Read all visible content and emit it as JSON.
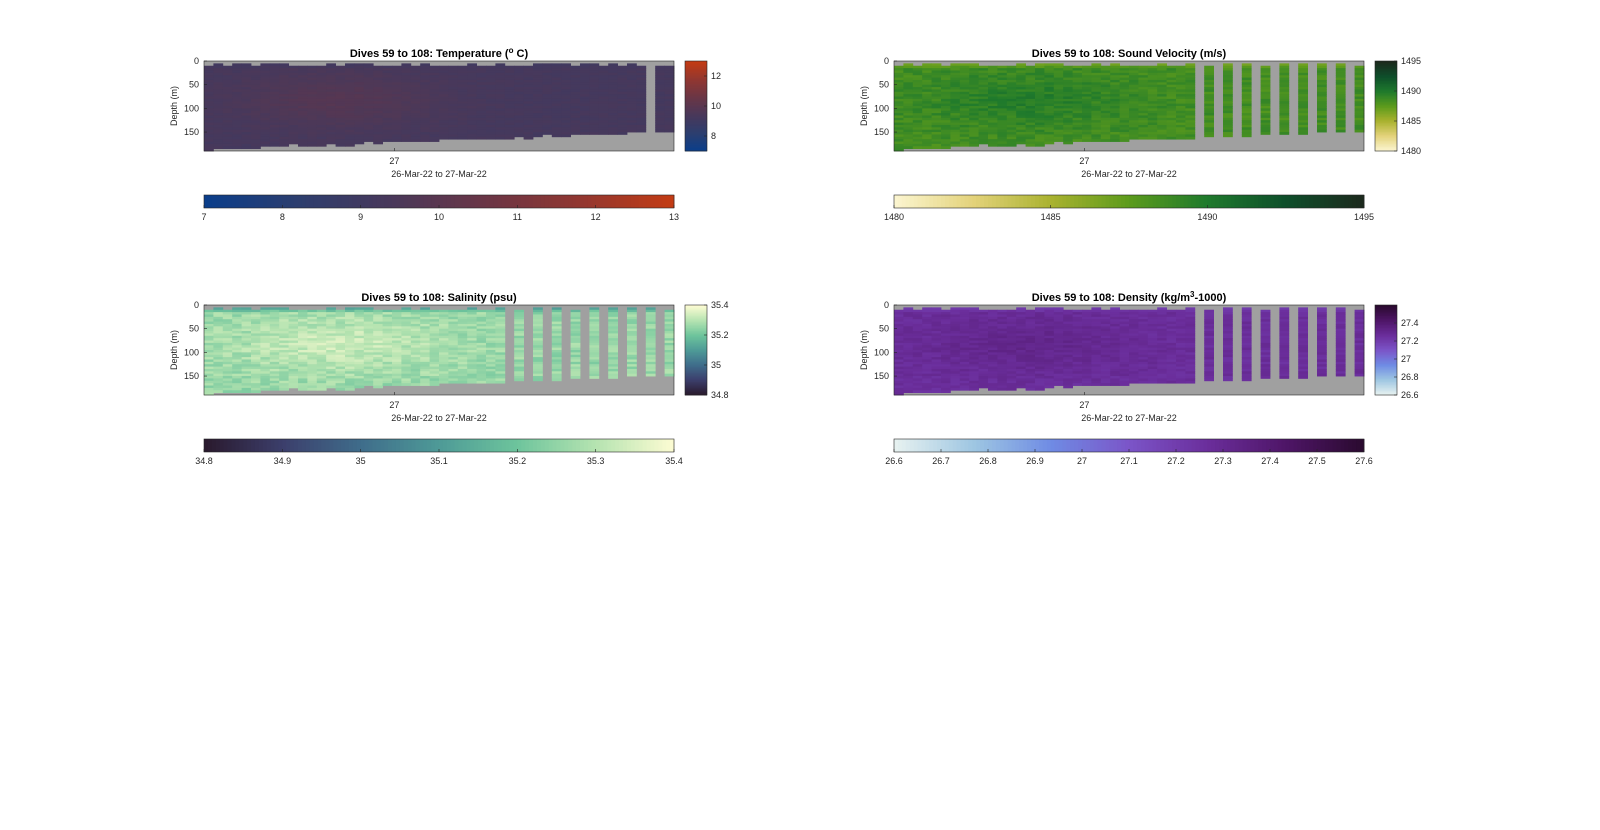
{
  "figure": {
    "background": "#ffffff",
    "nodata_color": "#a0a0a0"
  },
  "chart_data": [
    {
      "type": "heatmap",
      "title": "Dives 59 to 108: Temperature (",
      "title_sup": "o",
      "title_end": " C)",
      "ylabel": "Depth (m)",
      "xtick_label": "27",
      "xlabel": "26-Mar-22 to 27-Mar-22",
      "y_ticks": [
        "0",
        "50",
        "100",
        "150"
      ],
      "ylim": [
        0,
        190
      ],
      "n_dives": 50,
      "clim": [
        7,
        13
      ],
      "colorbar_ticks": [
        "7",
        "8",
        "9",
        "10",
        "11",
        "12",
        "13"
      ],
      "colorbar_vertical_ticks": [
        "12",
        "10",
        "8"
      ],
      "colormap": [
        "#0b3e8a",
        "#2d3e6e",
        "#49385a",
        "#6a3646",
        "#913731",
        "#c23b14"
      ],
      "field": {
        "base": 9.25,
        "amp": 0.55,
        "noise": 0.12,
        "warm_center": 0.28,
        "surface": 9.0
      },
      "bottom_depth": {
        "start": 185,
        "end": 145
      },
      "profile_gaps": {
        "start": 1,
        "every": 0
      },
      "last_gap_dive": 47,
      "last_gap_depth": 2
    },
    {
      "type": "heatmap",
      "title": "Dives 59 to 108: Sound Velocity (m/s)",
      "ylabel": "Depth (m)",
      "xtick_label": "27",
      "xlabel": "26-Mar-22 to 27-Mar-22",
      "y_ticks": [
        "0",
        "50",
        "100",
        "150"
      ],
      "ylim": [
        0,
        190
      ],
      "n_dives": 50,
      "clim": [
        1480,
        1495
      ],
      "colorbar_ticks": [
        "1480",
        "1485",
        "1490",
        "1495"
      ],
      "colorbar_vertical_ticks": [
        "1495",
        "1490",
        "1485",
        "1480"
      ],
      "colormap": [
        "#fbf5cf",
        "#e3d27a",
        "#a9b22f",
        "#5c9b1c",
        "#1f7a2c",
        "#0e4f2b",
        "#1c2a1d"
      ],
      "field": {
        "base": 1488.5,
        "amp": 1.2,
        "noise": 0.7,
        "warm_center": 0.28,
        "surface": 1486.0
      },
      "bottom_depth": {
        "start": 185,
        "end": 145
      },
      "profile_gaps": {
        "start": 31,
        "every": 2
      },
      "last_gap_dive": -1,
      "last_gap_depth": 0
    },
    {
      "type": "heatmap",
      "title": "Dives 59 to 108: Salinity (psu)",
      "ylabel": "Depth (m)",
      "xtick_label": "27",
      "xlabel": "26-Mar-22 to 27-Mar-22",
      "y_ticks": [
        "0",
        "50",
        "100",
        "150"
      ],
      "ylim": [
        0,
        190
      ],
      "n_dives": 50,
      "clim": [
        34.8,
        35.4
      ],
      "colorbar_ticks": [
        "34.8",
        "34.9",
        "35",
        "35.1",
        "35.2",
        "35.3",
        "35.4"
      ],
      "colorbar_vertical_ticks": [
        "35.4",
        "35.2",
        "35",
        "34.8"
      ],
      "colormap": [
        "#2a1a2e",
        "#3c3f6c",
        "#3f6d8b",
        "#4e9a97",
        "#6dc49c",
        "#b4e3b0",
        "#fbfbd2"
      ],
      "field": {
        "base": 35.26,
        "amp": 0.07,
        "noise": 0.04,
        "warm_center": 0.28,
        "surface": 35.05
      },
      "bottom_depth": {
        "start": 185,
        "end": 145
      },
      "profile_gaps": {
        "start": 31,
        "every": 2
      },
      "last_gap_dive": -1,
      "last_gap_depth": 0
    },
    {
      "type": "heatmap",
      "title": "Dives 59 to 108: Density (kg/m",
      "title_sup": "3",
      "title_end": "-1000)",
      "ylabel": "Depth (m)",
      "xtick_label": "27",
      "xlabel": "26-Mar-22 to 27-Mar-22",
      "y_ticks": [
        "0",
        "50",
        "100",
        "150"
      ],
      "ylim": [
        0,
        190
      ],
      "n_dives": 50,
      "clim": [
        26.6,
        27.6
      ],
      "colorbar_ticks": [
        "26.6",
        "26.7",
        "26.8",
        "26.9",
        "27",
        "27.1",
        "27.2",
        "27.3",
        "27.4",
        "27.5",
        "27.6"
      ],
      "colorbar_vertical_ticks": [
        "27.4",
        "27.2",
        "27",
        "26.8",
        "26.6"
      ],
      "colormap": [
        "#e6f1f0",
        "#9ec6e2",
        "#6f8be4",
        "#7b55c8",
        "#6b2e9c",
        "#4f1668",
        "#2b0a30"
      ],
      "field": {
        "base": 27.27,
        "amp": 0.05,
        "noise": 0.03,
        "warm_center": 0.28,
        "surface": 27.18
      },
      "bottom_depth": {
        "start": 185,
        "end": 145
      },
      "profile_gaps": {
        "start": 31,
        "every": 2
      },
      "last_gap_dive": -1,
      "last_gap_depth": 0
    }
  ]
}
